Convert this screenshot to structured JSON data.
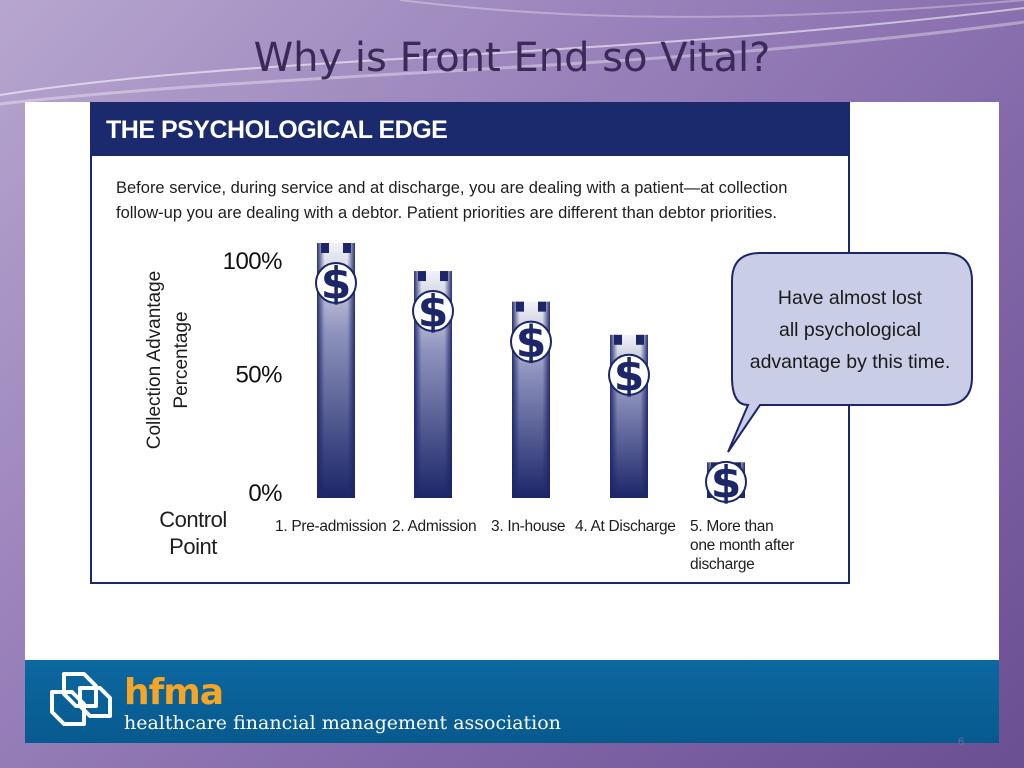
{
  "slide": {
    "title": "Why is Front End so Vital?",
    "page_number": "6"
  },
  "panel": {
    "title": "THE PSYCHOLOGICAL EDGE",
    "description": "Before service, during service and at discharge, you are dealing with a patient—at collection follow-up you are dealing with a debtor. Patient priorities are different than debtor priorities."
  },
  "callout": {
    "text_lines": [
      "Have almost lost",
      "all psychological",
      "advantage by this time."
    ]
  },
  "footer": {
    "logo_word": "hfma",
    "tagline": "healthcare financial management association"
  },
  "chart_data": {
    "type": "bar",
    "ylabel_lines": [
      "Collection Advantage",
      "Percentage"
    ],
    "xlabel_lines": [
      "Control",
      "Point"
    ],
    "ylim": [
      0,
      100
    ],
    "yticks": [
      {
        "value": 0,
        "label": "0%"
      },
      {
        "value": 50,
        "label": "50%"
      },
      {
        "value": 100,
        "label": "100%"
      }
    ],
    "categories": [
      [
        "1. Pre-admission"
      ],
      [
        "2.  Admission"
      ],
      [
        "3. In-house"
      ],
      [
        "4. At Discharge"
      ],
      [
        "5. More than",
        "one month after",
        "discharge"
      ]
    ],
    "values": [
      100,
      89,
      77,
      64,
      14
    ],
    "bar_icon": "dollar-sign-icon",
    "colors": {
      "bar_dark": "#1c2668",
      "bar_light": "#f2f3f8",
      "border": "#1a2a6c"
    }
  }
}
